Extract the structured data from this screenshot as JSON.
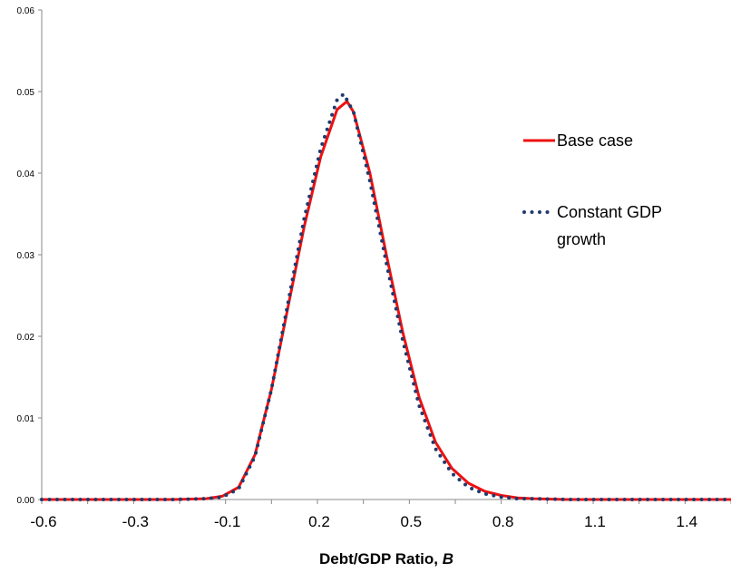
{
  "chart_data": {
    "type": "line",
    "title": "",
    "xlabel": "Debt/GDP Ratio, ",
    "xlabel_var": "B",
    "ylabel": "",
    "xlim": [
      -0.6,
      1.5
    ],
    "ylim": [
      0,
      0.06
    ],
    "x_ticks": [
      "-0.6",
      "-0.3",
      "-0.1",
      "0.2",
      "0.5",
      "0.8",
      "1.1",
      "1.4"
    ],
    "y_ticks": [
      "0.00",
      "0.01",
      "0.02",
      "0.03",
      "0.04",
      "0.05",
      "0.06"
    ],
    "grid": false,
    "legend_position": "right",
    "series": [
      {
        "name": "Base case",
        "color": "#ee1111",
        "style": "solid",
        "x": [
          -0.6,
          -0.5,
          -0.4,
          -0.3,
          -0.2,
          -0.1,
          -0.05,
          0.0,
          0.05,
          0.1,
          0.15,
          0.2,
          0.25,
          0.3,
          0.33,
          0.35,
          0.4,
          0.45,
          0.5,
          0.55,
          0.6,
          0.65,
          0.7,
          0.75,
          0.8,
          0.85,
          0.9,
          1.0,
          1.1,
          1.2,
          1.3,
          1.4,
          1.5
        ],
        "y": [
          0,
          0,
          0,
          0,
          0,
          0.0001,
          0.0004,
          0.0015,
          0.0055,
          0.0135,
          0.0235,
          0.0335,
          0.042,
          0.0478,
          0.0488,
          0.0475,
          0.04,
          0.03,
          0.0205,
          0.0125,
          0.007,
          0.0038,
          0.002,
          0.001,
          0.0005,
          0.0002,
          0.0001,
          0,
          0,
          0,
          0,
          0,
          0
        ]
      },
      {
        "name": "Constant GDP growth",
        "color": "#1f3a6e",
        "style": "dotted",
        "x": [
          -0.6,
          -0.5,
          -0.4,
          -0.3,
          -0.2,
          -0.1,
          -0.05,
          0.0,
          0.05,
          0.1,
          0.15,
          0.2,
          0.25,
          0.3,
          0.32,
          0.35,
          0.4,
          0.45,
          0.5,
          0.55,
          0.6,
          0.65,
          0.7,
          0.75,
          0.8,
          0.85,
          0.9,
          1.0,
          1.1,
          1.2,
          1.3,
          1.4,
          1.5
        ],
        "y": [
          0,
          0,
          0,
          0,
          0,
          0.0001,
          0.0003,
          0.0013,
          0.0053,
          0.0135,
          0.024,
          0.0345,
          0.043,
          0.049,
          0.0497,
          0.0475,
          0.039,
          0.029,
          0.0195,
          0.0115,
          0.0062,
          0.0032,
          0.0015,
          0.0007,
          0.0003,
          0.0001,
          0.0001,
          0,
          0,
          0,
          0,
          0,
          0
        ]
      }
    ]
  }
}
